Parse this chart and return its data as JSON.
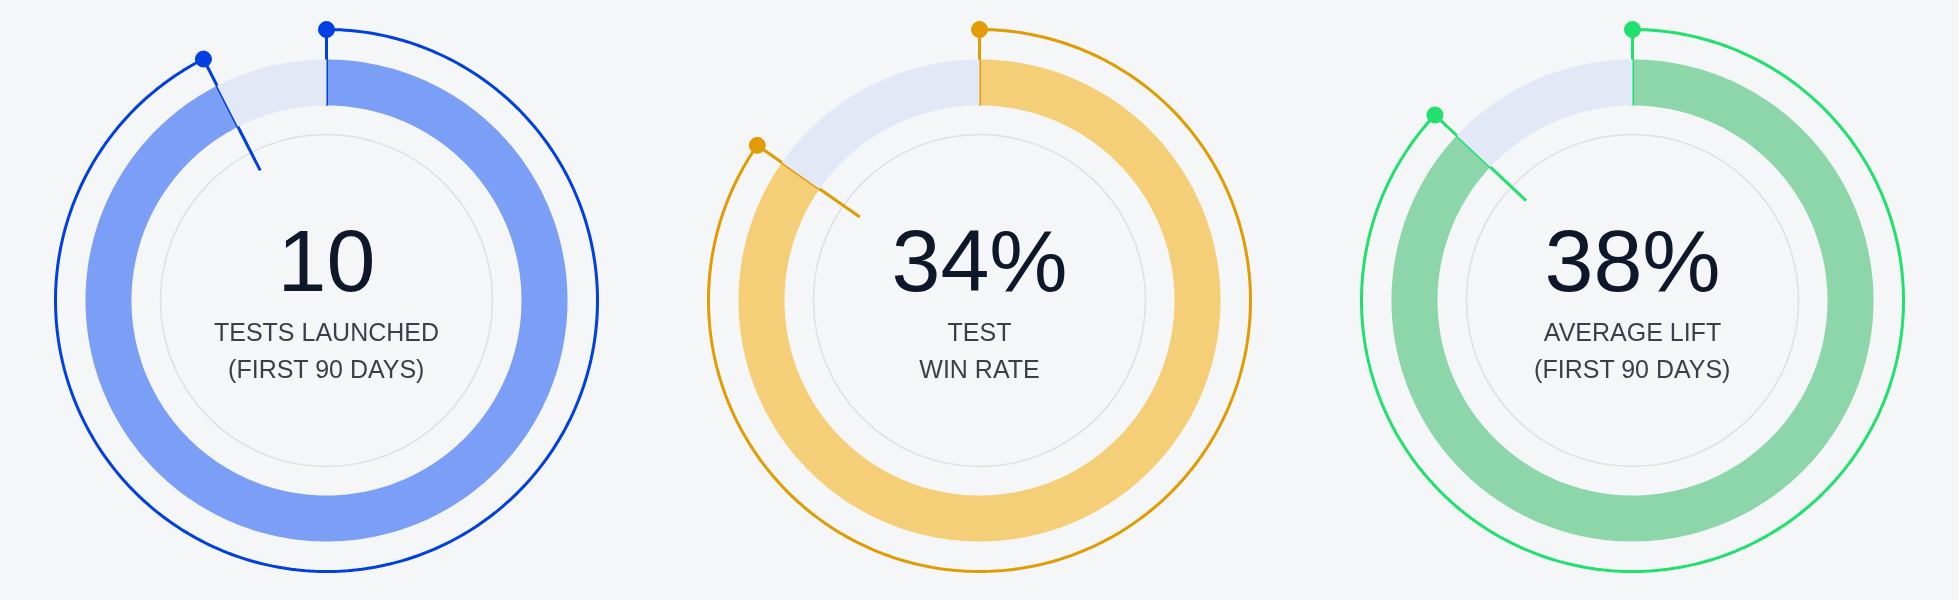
{
  "chart_data": [
    {
      "type": "donut",
      "title": "10",
      "subtitle": "TESTS LAUNCHED\n(FIRST 90 DAYS)",
      "categories": [
        null,
        null
      ],
      "values": [
        92.5,
        7.5
      ],
      "colors": [
        "#7b9ef6",
        "#e3e8f7"
      ]
    },
    {
      "type": "donut",
      "title": "34%",
      "subtitle": "TEST\nWIN RATE",
      "categories": [
        null,
        null
      ],
      "values": [
        84.7,
        15.3
      ],
      "colors": [
        "#f5cf78",
        "#e3e8f7"
      ]
    },
    {
      "type": "donut",
      "title": "38%",
      "subtitle": "AVERAGE LIFT\n(FIRST 90 DAYS)",
      "categories": [
        null,
        null
      ],
      "values": [
        87,
        13
      ],
      "colors": [
        "#8cd6aa",
        "#e3e8f7"
      ]
    }
  ]
}
